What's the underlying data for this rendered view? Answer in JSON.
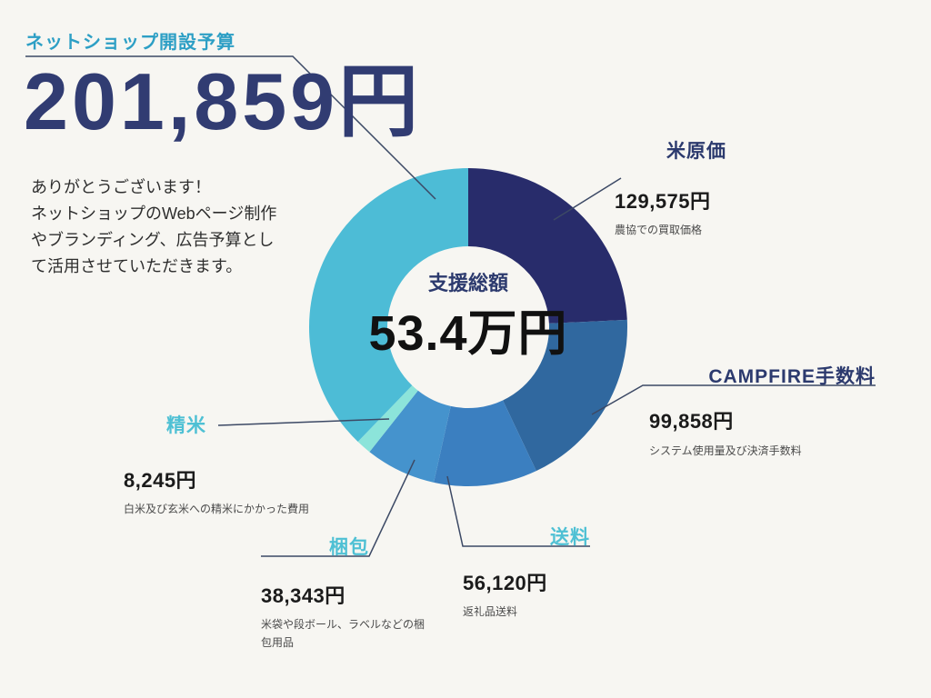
{
  "palette": {
    "bg": "#f7f6f2",
    "navy": "#2c3a6e",
    "teal_label": "#4ec0d4",
    "headline_teal": "#2d9fc5",
    "line": "#3c4965",
    "text_dark": "#1b1b1b",
    "desc_gray": "#4a4a4a"
  },
  "message": {
    "lines": [
      "ありがとうございます！",
      "ネットショップのWebページ制作",
      "やブランディング、広告予算とし",
      "て活用させていただきます。"
    ]
  },
  "chart_data": {
    "type": "pie",
    "subtype": "donut",
    "unit": "円",
    "direction": "clockwise",
    "start_angle_deg": 0,
    "legend_position": "callout-labels",
    "center": {
      "label": "支援総額",
      "value": "53.4万円"
    },
    "segments": [
      {
        "key": "rice-cost",
        "label": "米原価",
        "amount": "129,575円",
        "value": 129575,
        "desc": "農協での買取価格",
        "color": "#282c6b"
      },
      {
        "key": "campfire-fee",
        "label": "CAMPFIRE手数料",
        "amount": "99,858円",
        "value": 99858,
        "desc": "システム使用量及び決済手数料",
        "color": "#30689f"
      },
      {
        "key": "shipping",
        "label": "送料",
        "amount": "56,120円",
        "value": 56120,
        "desc": "返礼品送料",
        "color": "#3b7fc0"
      },
      {
        "key": "packing",
        "label": "梱包",
        "amount": "38,343円",
        "value": 38343,
        "desc": "米袋や段ボール、ラベルなどの梱包用品",
        "color": "#4593cd"
      },
      {
        "key": "polishing",
        "label": "精米",
        "amount": "8,245円",
        "value": 8245,
        "desc": "白米及び玄米への精米にかかった費用",
        "color": "#8ce4da"
      },
      {
        "key": "shop-budget",
        "label": "ネットショップ開設予算",
        "amount": "201,859円",
        "value": 201859,
        "desc": "",
        "color": "#4dbcd6"
      }
    ]
  }
}
